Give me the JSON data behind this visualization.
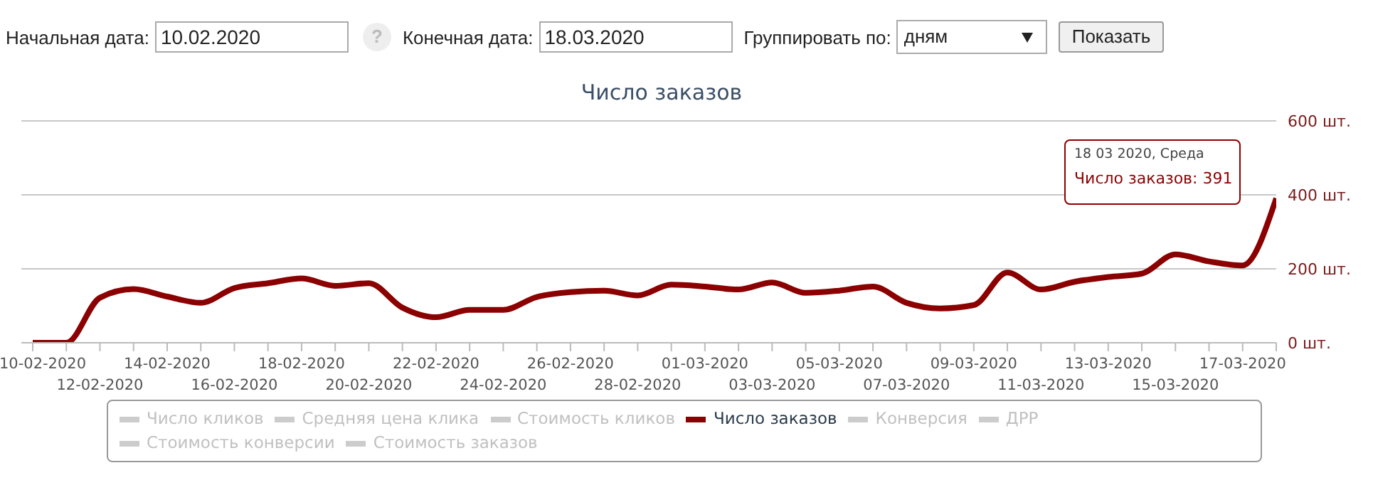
{
  "chart_data": {
    "type": "line",
    "title": "Число заказов",
    "categories": [
      "10-02-2020",
      null,
      "12-02-2020",
      null,
      "14-02-2020",
      null,
      "16-02-2020",
      null,
      "18-02-2020",
      null,
      "20-02-2020",
      null,
      "22-02-2020",
      null,
      "24-02-2020",
      null,
      "26-02-2020",
      null,
      "28-02-2020",
      null,
      "01-03-2020",
      null,
      "03-03-2020",
      null,
      "05-03-2020",
      null,
      "07-03-2020",
      null,
      "09-03-2020",
      null,
      "11-03-2020",
      null,
      "13-03-2020",
      null,
      "15-03-2020",
      null,
      "17-03-2020",
      null
    ],
    "series": [
      {
        "name": "Число кликов",
        "color": "#cccccc",
        "values": [
          null,
          null,
          null,
          null,
          null,
          null,
          null,
          null,
          null,
          null,
          null,
          null,
          null,
          null,
          null,
          null,
          null,
          null,
          null,
          null,
          null,
          null,
          null,
          null,
          null,
          null,
          null,
          null,
          null,
          null,
          null,
          null,
          null,
          null,
          null,
          null,
          null,
          null
        ]
      },
      {
        "name": "Средняя цена клика",
        "color": "#cccccc",
        "values": [
          null,
          null,
          null,
          null,
          null,
          null,
          null,
          null,
          null,
          null,
          null,
          null,
          null,
          null,
          null,
          null,
          null,
          null,
          null,
          null,
          null,
          null,
          null,
          null,
          null,
          null,
          null,
          null,
          null,
          null,
          null,
          null,
          null,
          null,
          null,
          null,
          null,
          null
        ]
      },
      {
        "name": "Стоимость кликов",
        "color": "#cccccc",
        "values": [
          null,
          null,
          null,
          null,
          null,
          null,
          null,
          null,
          null,
          null,
          null,
          null,
          null,
          null,
          null,
          null,
          null,
          null,
          null,
          null,
          null,
          null,
          null,
          null,
          null,
          null,
          null,
          null,
          null,
          null,
          null,
          null,
          null,
          null,
          null,
          null,
          null,
          null
        ]
      },
      {
        "name": "Число заказов",
        "color": "#8b0000",
        "values": [
          0,
          0,
          122,
          145,
          125,
          108,
          148,
          161,
          174,
          154,
          161,
          95,
          69,
          89,
          89,
          124,
          137,
          141,
          128,
          157,
          152,
          144,
          163,
          135,
          141,
          152,
          108,
          93,
          102,
          190,
          144,
          165,
          178,
          187,
          239,
          220,
          209,
          391
        ]
      },
      {
        "name": "Конверсия",
        "color": "#cccccc",
        "values": [
          null,
          null,
          null,
          null,
          null,
          null,
          null,
          null,
          null,
          null,
          null,
          null,
          null,
          null,
          null,
          null,
          null,
          null,
          null,
          null,
          null,
          null,
          null,
          null,
          null,
          null,
          null,
          null,
          null,
          null,
          null,
          null,
          null,
          null,
          null,
          null,
          null,
          null
        ]
      },
      {
        "name": "ДРР",
        "color": "#cccccc",
        "values": [
          null,
          null,
          null,
          null,
          null,
          null,
          null,
          null,
          null,
          null,
          null,
          null,
          null,
          null,
          null,
          null,
          null,
          null,
          null,
          null,
          null,
          null,
          null,
          null,
          null,
          null,
          null,
          null,
          null,
          null,
          null,
          null,
          null,
          null,
          null,
          null,
          null,
          null
        ]
      },
      {
        "name": "Стоимость конверсии",
        "color": "#cccccc",
        "values": [
          null,
          null,
          null,
          null,
          null,
          null,
          null,
          null,
          null,
          null,
          null,
          null,
          null,
          null,
          null,
          null,
          null,
          null,
          null,
          null,
          null,
          null,
          null,
          null,
          null,
          null,
          null,
          null,
          null,
          null,
          null,
          null,
          null,
          null,
          null,
          null,
          null,
          null
        ]
      },
      {
        "name": "Стоимость заказов",
        "color": "#cccccc",
        "values": [
          null,
          null,
          null,
          null,
          null,
          null,
          null,
          null,
          null,
          null,
          null,
          null,
          null,
          null,
          null,
          null,
          null,
          null,
          null,
          null,
          null,
          null,
          null,
          null,
          null,
          null,
          null,
          null,
          null,
          null,
          null,
          null,
          null,
          null,
          null,
          null,
          null,
          null
        ]
      }
    ],
    "ylim": [
      0,
      600
    ],
    "yticks": [
      {
        "value": 0,
        "label": "0 шт."
      },
      {
        "value": 200,
        "label": "200 шт."
      },
      {
        "value": 400,
        "label": "400 шт."
      },
      {
        "value": 600,
        "label": "600 шт."
      }
    ],
    "grid": "y",
    "legend": "bottom",
    "marker": "none",
    "line_style": "solid",
    "annotations": [
      "Начальная дата:",
      "10.02.2020",
      "?",
      "Конечная дата:",
      "18.03.2020",
      "Группировать по:",
      "дням",
      "Показать",
      "18 03 2020, Среда",
      "Число заказов: 391"
    ]
  }
}
